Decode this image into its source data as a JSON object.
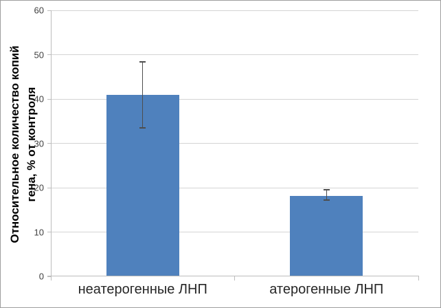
{
  "chart_data": {
    "type": "bar",
    "title": "",
    "categories": [
      "неатерогенные ЛНП",
      "атерогенные ЛНП"
    ],
    "values": [
      40.9,
      18.2
    ],
    "error_bars": [
      {
        "upper": 48.3,
        "lower": 33.5
      },
      {
        "upper": 19.6,
        "lower": 17.2
      }
    ],
    "ylabel_line1": "Относительное количество копий",
    "ylabel_line2": "гена, % от контроля",
    "xlabel": "",
    "ylim": [
      0,
      60
    ],
    "yticks": [
      0,
      10,
      20,
      30,
      40,
      50,
      60
    ],
    "grid": "horizontal",
    "legend": "none",
    "colors": {
      "bar_fill": "#4F81BD",
      "gridline": "#D4D4D4",
      "axis": "#BCBCBC",
      "error_bar": "#4D4D4D",
      "tick_label": "#404040",
      "category_label": "#262626",
      "frame_border": "#9E9E9E"
    }
  }
}
